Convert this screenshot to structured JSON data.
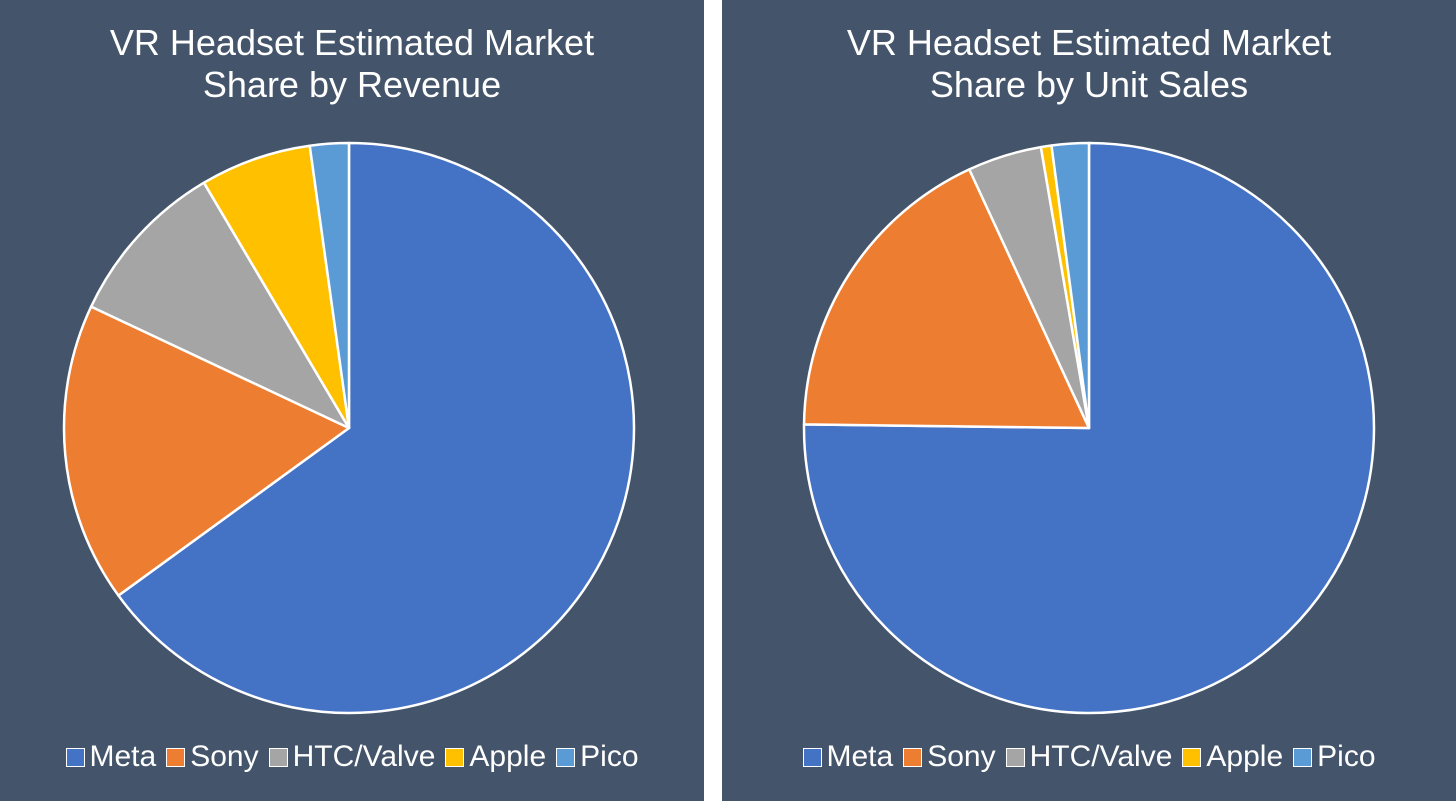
{
  "chart_data": [
    {
      "type": "pie",
      "title_lines": [
        "VR Headset Estimated Market",
        "Share by Revenue"
      ],
      "legend_position": "bottom",
      "categories": [
        "Meta",
        "Sony",
        "HTC/Valve",
        "Apple",
        "Pico"
      ],
      "values": [
        65,
        17,
        9.5,
        6.3,
        2.2
      ],
      "colors": [
        "#4472c4",
        "#ed7d31",
        "#a5a5a5",
        "#ffc000",
        "#5b9bd5"
      ]
    },
    {
      "type": "pie",
      "title_lines": [
        "VR Headset Estimated Market",
        "Share by Unit Sales"
      ],
      "legend_position": "bottom",
      "categories": [
        "Meta",
        "Sony",
        "HTC/Valve",
        "Apple",
        "Pico"
      ],
      "values": [
        75.2,
        17.9,
        4.2,
        0.6,
        2.1
      ],
      "colors": [
        "#4472c4",
        "#ed7d31",
        "#a5a5a5",
        "#ffc000",
        "#5b9bd5"
      ]
    }
  ]
}
